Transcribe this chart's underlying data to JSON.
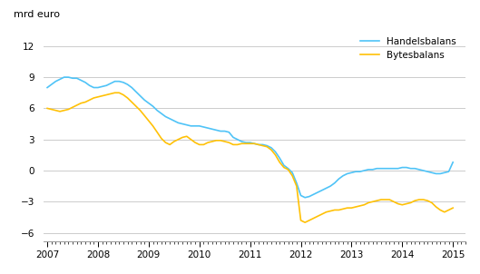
{
  "title_ylabel": "mrd euro",
  "handelsbalans_color": "#4FC3F7",
  "bytesbalans_color": "#FFC107",
  "legend_labels": [
    "Handelsbalans",
    "Bytesbalans"
  ],
  "yticks": [
    -6,
    -3,
    0,
    3,
    6,
    9,
    12
  ],
  "ylim": [
    -6.8,
    13.8
  ],
  "xlim": [
    2006.92,
    2015.25
  ],
  "background_color": "#ffffff",
  "grid_color": "#cccccc",
  "handelsbalans": {
    "x": [
      2007.0,
      2007.083,
      2007.167,
      2007.25,
      2007.333,
      2007.417,
      2007.5,
      2007.583,
      2007.667,
      2007.75,
      2007.833,
      2007.917,
      2008.0,
      2008.083,
      2008.167,
      2008.25,
      2008.333,
      2008.417,
      2008.5,
      2008.583,
      2008.667,
      2008.75,
      2008.833,
      2008.917,
      2009.0,
      2009.083,
      2009.167,
      2009.25,
      2009.333,
      2009.417,
      2009.5,
      2009.583,
      2009.667,
      2009.75,
      2009.833,
      2009.917,
      2010.0,
      2010.083,
      2010.167,
      2010.25,
      2010.333,
      2010.417,
      2010.5,
      2010.583,
      2010.667,
      2010.75,
      2010.833,
      2010.917,
      2011.0,
      2011.083,
      2011.167,
      2011.25,
      2011.333,
      2011.417,
      2011.5,
      2011.583,
      2011.667,
      2011.75,
      2011.833,
      2011.917,
      2012.0,
      2012.083,
      2012.167,
      2012.25,
      2012.333,
      2012.417,
      2012.5,
      2012.583,
      2012.667,
      2012.75,
      2012.833,
      2012.917,
      2013.0,
      2013.083,
      2013.167,
      2013.25,
      2013.333,
      2013.417,
      2013.5,
      2013.583,
      2013.667,
      2013.75,
      2013.833,
      2013.917,
      2014.0,
      2014.083,
      2014.167,
      2014.25,
      2014.333,
      2014.417,
      2014.5,
      2014.583,
      2014.667,
      2014.75,
      2014.833,
      2014.917,
      2015.0
    ],
    "y": [
      8.0,
      8.3,
      8.6,
      8.8,
      9.0,
      9.0,
      8.9,
      8.9,
      8.7,
      8.5,
      8.2,
      8.0,
      8.0,
      8.1,
      8.2,
      8.4,
      8.6,
      8.6,
      8.5,
      8.3,
      8.0,
      7.6,
      7.2,
      6.8,
      6.5,
      6.2,
      5.8,
      5.5,
      5.2,
      5.0,
      4.8,
      4.6,
      4.5,
      4.4,
      4.3,
      4.3,
      4.3,
      4.2,
      4.1,
      4.0,
      3.9,
      3.8,
      3.8,
      3.7,
      3.2,
      3.0,
      2.8,
      2.7,
      2.7,
      2.6,
      2.5,
      2.5,
      2.4,
      2.2,
      1.8,
      1.2,
      0.5,
      0.2,
      -0.2,
      -1.2,
      -2.4,
      -2.6,
      -2.5,
      -2.3,
      -2.1,
      -1.9,
      -1.7,
      -1.5,
      -1.2,
      -0.8,
      -0.5,
      -0.3,
      -0.2,
      -0.1,
      -0.1,
      0.0,
      0.1,
      0.1,
      0.2,
      0.2,
      0.2,
      0.2,
      0.2,
      0.2,
      0.3,
      0.3,
      0.2,
      0.2,
      0.1,
      0.0,
      -0.1,
      -0.2,
      -0.3,
      -0.3,
      -0.2,
      -0.1,
      0.8
    ]
  },
  "bytesbalans": {
    "x": [
      2007.0,
      2007.083,
      2007.167,
      2007.25,
      2007.333,
      2007.417,
      2007.5,
      2007.583,
      2007.667,
      2007.75,
      2007.833,
      2007.917,
      2008.0,
      2008.083,
      2008.167,
      2008.25,
      2008.333,
      2008.417,
      2008.5,
      2008.583,
      2008.667,
      2008.75,
      2008.833,
      2008.917,
      2009.0,
      2009.083,
      2009.167,
      2009.25,
      2009.333,
      2009.417,
      2009.5,
      2009.583,
      2009.667,
      2009.75,
      2009.833,
      2009.917,
      2010.0,
      2010.083,
      2010.167,
      2010.25,
      2010.333,
      2010.417,
      2010.5,
      2010.583,
      2010.667,
      2010.75,
      2010.833,
      2010.917,
      2011.0,
      2011.083,
      2011.167,
      2011.25,
      2011.333,
      2011.417,
      2011.5,
      2011.583,
      2011.667,
      2011.75,
      2011.833,
      2011.917,
      2012.0,
      2012.083,
      2012.167,
      2012.25,
      2012.333,
      2012.417,
      2012.5,
      2012.583,
      2012.667,
      2012.75,
      2012.833,
      2012.917,
      2013.0,
      2013.083,
      2013.167,
      2013.25,
      2013.333,
      2013.417,
      2013.5,
      2013.583,
      2013.667,
      2013.75,
      2013.833,
      2013.917,
      2014.0,
      2014.083,
      2014.167,
      2014.25,
      2014.333,
      2014.417,
      2014.5,
      2014.583,
      2014.667,
      2014.75,
      2014.833,
      2014.917,
      2015.0
    ],
    "y": [
      6.0,
      5.9,
      5.8,
      5.7,
      5.8,
      5.9,
      6.1,
      6.3,
      6.5,
      6.6,
      6.8,
      7.0,
      7.1,
      7.2,
      7.3,
      7.4,
      7.5,
      7.5,
      7.3,
      7.0,
      6.6,
      6.2,
      5.8,
      5.3,
      4.8,
      4.3,
      3.7,
      3.1,
      2.7,
      2.5,
      2.8,
      3.0,
      3.2,
      3.3,
      3.0,
      2.7,
      2.5,
      2.5,
      2.7,
      2.8,
      2.9,
      2.9,
      2.8,
      2.7,
      2.5,
      2.5,
      2.6,
      2.6,
      2.6,
      2.6,
      2.5,
      2.4,
      2.3,
      2.0,
      1.5,
      0.8,
      0.3,
      0.1,
      -0.5,
      -1.5,
      -4.8,
      -5.0,
      -4.8,
      -4.6,
      -4.4,
      -4.2,
      -4.0,
      -3.9,
      -3.8,
      -3.8,
      -3.7,
      -3.6,
      -3.6,
      -3.5,
      -3.4,
      -3.3,
      -3.1,
      -3.0,
      -2.9,
      -2.8,
      -2.8,
      -2.8,
      -3.0,
      -3.2,
      -3.3,
      -3.2,
      -3.1,
      -2.9,
      -2.8,
      -2.8,
      -2.9,
      -3.1,
      -3.5,
      -3.8,
      -4.0,
      -3.8,
      -3.6
    ]
  }
}
